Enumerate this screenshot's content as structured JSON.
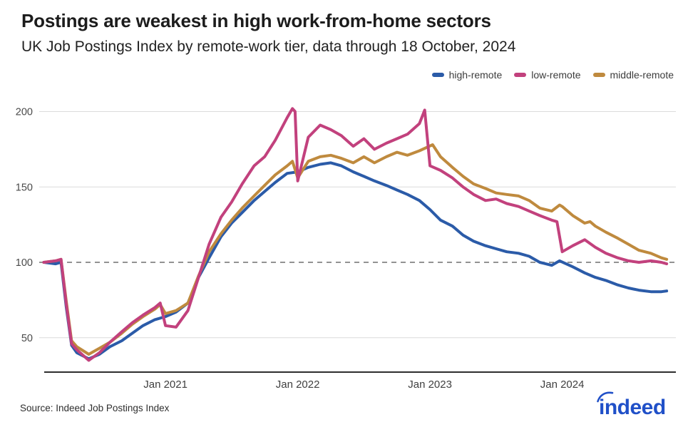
{
  "header": {
    "title": "Postings are weakest in high work-from-home sectors",
    "subtitle": "UK Job Postings Index by remote-work tier, data through 18 October, 2024"
  },
  "footer": {
    "source": "Source: Indeed Job Postings Index",
    "logo_text": "indeed",
    "logo_color": "#2050C8"
  },
  "chart_data": {
    "type": "line",
    "title": "UK Job Postings Index by remote-work tier, data through 18 October, 2024",
    "grid": true,
    "legend_position": "top-right",
    "x_axis": {
      "range": [
        2020.05,
        2024.85
      ],
      "ticks": [
        {
          "t": 2021.0,
          "label": "Jan 2021"
        },
        {
          "t": 2022.0,
          "label": "Jan 2022"
        },
        {
          "t": 2023.0,
          "label": "Jan 2023"
        },
        {
          "t": 2024.0,
          "label": "Jan 2024"
        }
      ]
    },
    "y_axis": {
      "ticks": [
        50,
        100,
        150,
        200
      ],
      "baseline": 100,
      "range": [
        27,
        205
      ]
    },
    "series": [
      {
        "name": "high-remote",
        "color": "#2B5BA8",
        "points": [
          [
            2020.08,
            100
          ],
          [
            2020.17,
            99
          ],
          [
            2020.21,
            100
          ],
          [
            2020.25,
            70
          ],
          [
            2020.29,
            45
          ],
          [
            2020.33,
            40
          ],
          [
            2020.42,
            36
          ],
          [
            2020.5,
            39
          ],
          [
            2020.58,
            44
          ],
          [
            2020.67,
            48
          ],
          [
            2020.75,
            53
          ],
          [
            2020.83,
            58
          ],
          [
            2020.92,
            62
          ],
          [
            2020.96,
            63
          ],
          [
            2021.0,
            64
          ],
          [
            2021.08,
            67
          ],
          [
            2021.17,
            73
          ],
          [
            2021.25,
            90
          ],
          [
            2021.33,
            103
          ],
          [
            2021.42,
            117
          ],
          [
            2021.5,
            126
          ],
          [
            2021.58,
            133
          ],
          [
            2021.67,
            141
          ],
          [
            2021.75,
            147
          ],
          [
            2021.83,
            153
          ],
          [
            2021.92,
            159
          ],
          [
            2022.0,
            160
          ],
          [
            2022.08,
            163
          ],
          [
            2022.17,
            165
          ],
          [
            2022.25,
            166
          ],
          [
            2022.33,
            164
          ],
          [
            2022.42,
            160
          ],
          [
            2022.5,
            157
          ],
          [
            2022.58,
            154
          ],
          [
            2022.67,
            151
          ],
          [
            2022.75,
            148
          ],
          [
            2022.83,
            145
          ],
          [
            2022.92,
            141
          ],
          [
            2023.0,
            135
          ],
          [
            2023.08,
            128
          ],
          [
            2023.17,
            124
          ],
          [
            2023.25,
            118
          ],
          [
            2023.33,
            114
          ],
          [
            2023.42,
            111
          ],
          [
            2023.5,
            109
          ],
          [
            2023.58,
            107
          ],
          [
            2023.67,
            106
          ],
          [
            2023.75,
            104
          ],
          [
            2023.83,
            100
          ],
          [
            2023.92,
            98
          ],
          [
            2023.98,
            101
          ],
          [
            2024.08,
            97
          ],
          [
            2024.17,
            93
          ],
          [
            2024.25,
            90
          ],
          [
            2024.33,
            88
          ],
          [
            2024.42,
            85
          ],
          [
            2024.5,
            83
          ],
          [
            2024.58,
            81.5
          ],
          [
            2024.67,
            80.5
          ],
          [
            2024.75,
            80.5
          ],
          [
            2024.79,
            81
          ]
        ]
      },
      {
        "name": "low-remote",
        "color": "#C2417D",
        "points": [
          [
            2020.08,
            100
          ],
          [
            2020.17,
            101
          ],
          [
            2020.21,
            102
          ],
          [
            2020.25,
            72
          ],
          [
            2020.29,
            46
          ],
          [
            2020.33,
            42
          ],
          [
            2020.42,
            35
          ],
          [
            2020.5,
            40
          ],
          [
            2020.58,
            47
          ],
          [
            2020.67,
            54
          ],
          [
            2020.75,
            60
          ],
          [
            2020.83,
            65
          ],
          [
            2020.92,
            70
          ],
          [
            2020.96,
            73
          ],
          [
            2021.0,
            58
          ],
          [
            2021.08,
            57
          ],
          [
            2021.17,
            68
          ],
          [
            2021.25,
            90
          ],
          [
            2021.33,
            112
          ],
          [
            2021.42,
            130
          ],
          [
            2021.5,
            140
          ],
          [
            2021.58,
            152
          ],
          [
            2021.67,
            164
          ],
          [
            2021.75,
            170
          ],
          [
            2021.83,
            181
          ],
          [
            2021.92,
            196
          ],
          [
            2021.96,
            202
          ],
          [
            2021.98,
            200
          ],
          [
            2022.0,
            154
          ],
          [
            2022.08,
            183
          ],
          [
            2022.17,
            191
          ],
          [
            2022.25,
            188
          ],
          [
            2022.33,
            184
          ],
          [
            2022.42,
            177
          ],
          [
            2022.5,
            182
          ],
          [
            2022.58,
            175
          ],
          [
            2022.67,
            179
          ],
          [
            2022.75,
            182
          ],
          [
            2022.83,
            185
          ],
          [
            2022.92,
            192
          ],
          [
            2022.96,
            201
          ],
          [
            2023.0,
            164
          ],
          [
            2023.08,
            161
          ],
          [
            2023.17,
            156
          ],
          [
            2023.25,
            150
          ],
          [
            2023.33,
            145
          ],
          [
            2023.42,
            141
          ],
          [
            2023.5,
            142
          ],
          [
            2023.58,
            139
          ],
          [
            2023.67,
            137
          ],
          [
            2023.75,
            134
          ],
          [
            2023.83,
            131
          ],
          [
            2023.92,
            128
          ],
          [
            2023.96,
            127
          ],
          [
            2024.0,
            107
          ],
          [
            2024.08,
            111
          ],
          [
            2024.17,
            115
          ],
          [
            2024.25,
            110
          ],
          [
            2024.33,
            106
          ],
          [
            2024.42,
            103
          ],
          [
            2024.5,
            101
          ],
          [
            2024.58,
            100
          ],
          [
            2024.67,
            101
          ],
          [
            2024.75,
            100
          ],
          [
            2024.79,
            99
          ]
        ]
      },
      {
        "name": "middle-remote",
        "color": "#BF8A3E",
        "points": [
          [
            2020.08,
            100
          ],
          [
            2020.17,
            101
          ],
          [
            2020.21,
            102
          ],
          [
            2020.25,
            74
          ],
          [
            2020.29,
            48
          ],
          [
            2020.33,
            44
          ],
          [
            2020.42,
            39
          ],
          [
            2020.5,
            43
          ],
          [
            2020.58,
            47
          ],
          [
            2020.67,
            53
          ],
          [
            2020.75,
            59
          ],
          [
            2020.83,
            64
          ],
          [
            2020.92,
            69
          ],
          [
            2020.96,
            72
          ],
          [
            2021.0,
            66
          ],
          [
            2021.08,
            68
          ],
          [
            2021.17,
            73
          ],
          [
            2021.25,
            91
          ],
          [
            2021.33,
            107
          ],
          [
            2021.42,
            119
          ],
          [
            2021.5,
            128
          ],
          [
            2021.58,
            136
          ],
          [
            2021.67,
            144
          ],
          [
            2021.75,
            151
          ],
          [
            2021.83,
            158
          ],
          [
            2021.92,
            164
          ],
          [
            2021.96,
            167
          ],
          [
            2022.0,
            156
          ],
          [
            2022.08,
            167
          ],
          [
            2022.17,
            170
          ],
          [
            2022.25,
            171
          ],
          [
            2022.33,
            169
          ],
          [
            2022.42,
            166
          ],
          [
            2022.5,
            170
          ],
          [
            2022.58,
            166
          ],
          [
            2022.67,
            170
          ],
          [
            2022.75,
            173
          ],
          [
            2022.83,
            171
          ],
          [
            2022.92,
            174
          ],
          [
            2023.02,
            178
          ],
          [
            2023.08,
            170
          ],
          [
            2023.17,
            163
          ],
          [
            2023.25,
            157
          ],
          [
            2023.33,
            152
          ],
          [
            2023.42,
            149
          ],
          [
            2023.5,
            146
          ],
          [
            2023.58,
            145
          ],
          [
            2023.67,
            144
          ],
          [
            2023.75,
            141
          ],
          [
            2023.83,
            136
          ],
          [
            2023.92,
            134
          ],
          [
            2023.98,
            138
          ],
          [
            2024.0,
            137
          ],
          [
            2024.08,
            131
          ],
          [
            2024.17,
            126
          ],
          [
            2024.21,
            127
          ],
          [
            2024.25,
            124
          ],
          [
            2024.33,
            120
          ],
          [
            2024.42,
            116
          ],
          [
            2024.5,
            112
          ],
          [
            2024.58,
            108
          ],
          [
            2024.67,
            106
          ],
          [
            2024.75,
            103
          ],
          [
            2024.79,
            102
          ]
        ]
      }
    ]
  }
}
